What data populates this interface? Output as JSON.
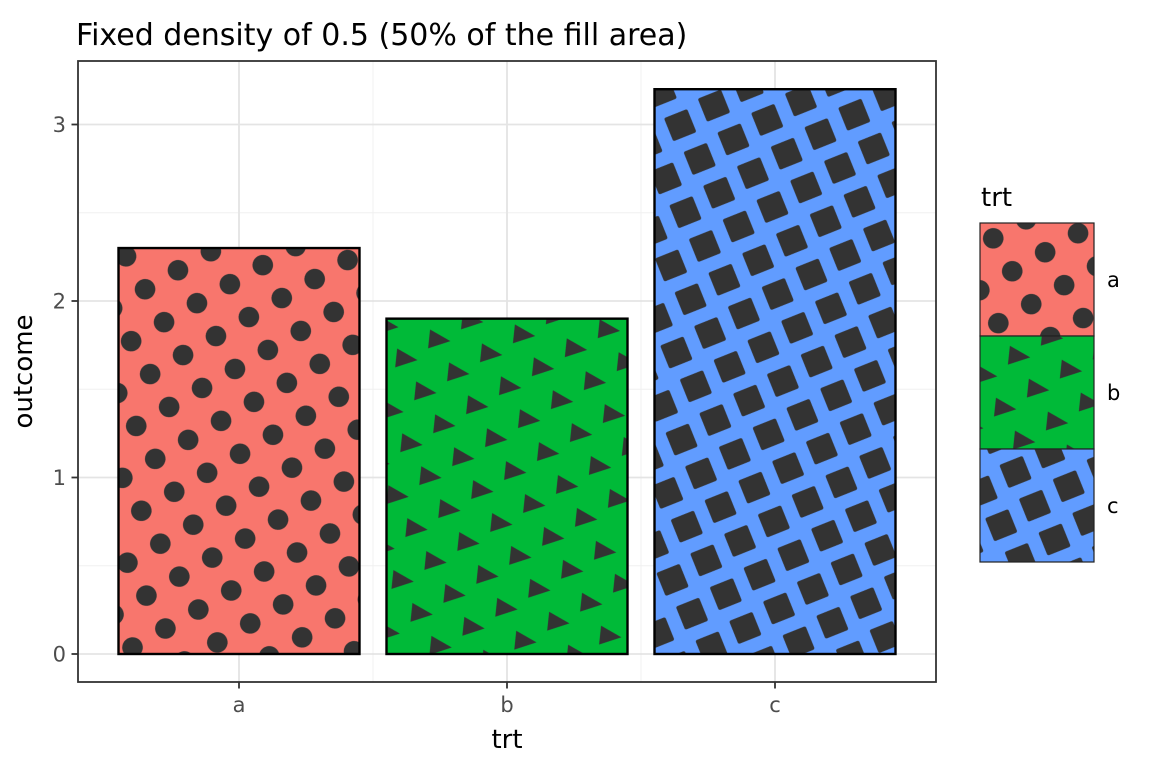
{
  "title": "Fixed density of 0.5 (50% of the fill area)",
  "chart_data": {
    "type": "bar",
    "title": "Fixed density of 0.5 (50% of the fill area)",
    "categories": [
      "a",
      "b",
      "c"
    ],
    "values": [
      2.3,
      1.9,
      3.2
    ],
    "series": [
      {
        "name": "a",
        "value": 2.3,
        "fill": "#F8766D",
        "pattern_shape": "circle"
      },
      {
        "name": "b",
        "value": 1.9,
        "fill": "#00BA38",
        "pattern_shape": "triangle"
      },
      {
        "name": "c",
        "value": 3.2,
        "fill": "#619CFF",
        "pattern_shape": "square"
      }
    ],
    "pattern_color": "#333333",
    "pattern_density": 0.5,
    "xlabel": "trt",
    "ylabel": "outcome",
    "ylim": [
      0,
      3.36
    ],
    "yticks": [
      0,
      1,
      2,
      3
    ],
    "grid": true,
    "legend_title": "trt",
    "legend_position": "right",
    "bar_outline_color": "#000000",
    "panel_border_color": "#333333",
    "major_grid_color": "#e4e4e4",
    "minor_grid_color": "#f0f0f0"
  },
  "axes": {
    "ylabel": "outcome",
    "xlabel": "trt",
    "y_tick_labels": [
      "3",
      "2",
      "1",
      "0"
    ],
    "x_tick_labels": [
      "a",
      "b",
      "c"
    ]
  },
  "legend": {
    "title": "trt",
    "entries": [
      "a",
      "b",
      "c"
    ]
  }
}
